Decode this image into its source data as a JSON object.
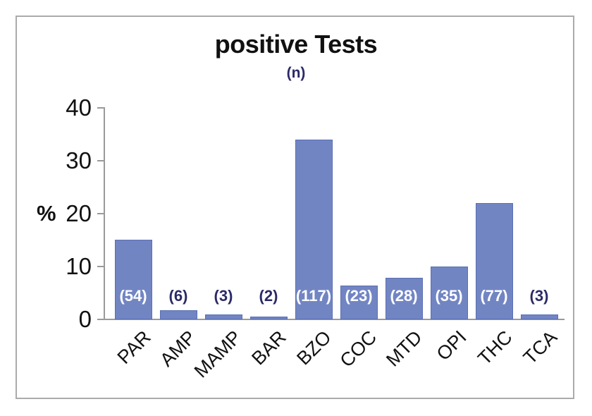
{
  "chart_data": {
    "type": "bar",
    "title": "positive Tests",
    "subtitle": "(n)",
    "ylabel": "%",
    "ylim": [
      0,
      40
    ],
    "yticks": [
      0,
      10,
      20,
      30,
      40
    ],
    "grid": false,
    "legend": "none",
    "categories": [
      "PAR",
      "AMP",
      "MAMP",
      "BAR",
      "BZO",
      "COC",
      "MTD",
      "OPI",
      "THC",
      "TCA"
    ],
    "values": [
      15,
      1.7,
      0.9,
      0.5,
      34,
      6.4,
      7.9,
      10,
      22,
      0.9
    ],
    "counts": [
      54,
      6,
      3,
      2,
      117,
      23,
      28,
      35,
      77,
      3
    ],
    "count_labels": [
      "(54)",
      "(6)",
      "(3)",
      "(2)",
      "(117)",
      "(23)",
      "(28)",
      "(35)",
      "(77)",
      "(3)"
    ],
    "colors": {
      "bar_fill": "#7285C3",
      "bar_border": "#5A6EB4",
      "count_label_inside": "#FFFFFF",
      "count_label_outside": "#2B2A66",
      "subtitle_navy": "#2B2A66",
      "title_black": "#111111",
      "axis_gray": "#9A9A9A",
      "frame_gray": "#ABABAB"
    }
  }
}
